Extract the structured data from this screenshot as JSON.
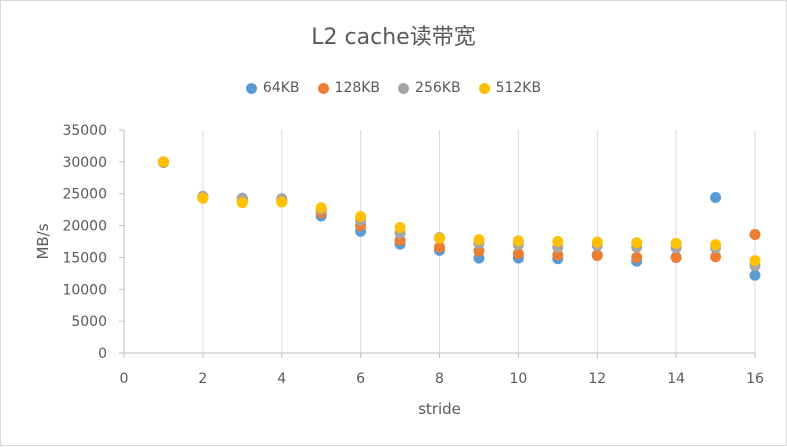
{
  "chart_data": {
    "type": "scatter",
    "title": "L2 cache读带宽",
    "xlabel": "stride",
    "ylabel": "MB/s",
    "xlim": [
      0,
      16
    ],
    "ylim": [
      0,
      35000
    ],
    "x_ticks": [
      0,
      2,
      4,
      6,
      8,
      10,
      12,
      14,
      16
    ],
    "y_ticks": [
      0,
      5000,
      10000,
      15000,
      20000,
      25000,
      30000,
      35000
    ],
    "grid": "vertical",
    "legend_position": "top",
    "series": [
      {
        "name": "64KB",
        "color": "#5b9bd5",
        "points": [
          [
            1,
            29900
          ],
          [
            2,
            24500
          ],
          [
            3,
            23900
          ],
          [
            4,
            23900
          ],
          [
            5,
            21500
          ],
          [
            6,
            19100
          ],
          [
            7,
            17100
          ],
          [
            8,
            16100
          ],
          [
            9,
            14900
          ],
          [
            10,
            14900
          ],
          [
            11,
            14800
          ],
          [
            12,
            15400
          ],
          [
            13,
            14400
          ],
          [
            14,
            15000
          ],
          [
            15,
            24400
          ],
          [
            16,
            12200
          ]
        ]
      },
      {
        "name": "128KB",
        "color": "#ed7d31",
        "points": [
          [
            1,
            30000
          ],
          [
            2,
            24400
          ],
          [
            3,
            24200
          ],
          [
            4,
            24000
          ],
          [
            5,
            22000
          ],
          [
            6,
            20000
          ],
          [
            7,
            17700
          ],
          [
            8,
            16600
          ],
          [
            9,
            16000
          ],
          [
            10,
            15600
          ],
          [
            11,
            15400
          ],
          [
            12,
            15300
          ],
          [
            13,
            15000
          ],
          [
            14,
            15000
          ],
          [
            15,
            15100
          ],
          [
            16,
            18600
          ]
        ]
      },
      {
        "name": "256KB",
        "color": "#a5a5a5",
        "points": [
          [
            1,
            30000
          ],
          [
            2,
            24600
          ],
          [
            3,
            24300
          ],
          [
            4,
            24200
          ],
          [
            5,
            22500
          ],
          [
            6,
            20800
          ],
          [
            7,
            18800
          ],
          [
            8,
            18100
          ],
          [
            9,
            17200
          ],
          [
            10,
            17000
          ],
          [
            11,
            16600
          ],
          [
            12,
            16900
          ],
          [
            13,
            16600
          ],
          [
            14,
            16500
          ],
          [
            15,
            16500
          ],
          [
            16,
            13700
          ]
        ]
      },
      {
        "name": "512KB",
        "color": "#ffc000",
        "points": [
          [
            1,
            30000
          ],
          [
            2,
            24300
          ],
          [
            3,
            23600
          ],
          [
            4,
            23700
          ],
          [
            5,
            22800
          ],
          [
            6,
            21400
          ],
          [
            7,
            19700
          ],
          [
            8,
            18000
          ],
          [
            9,
            17800
          ],
          [
            10,
            17600
          ],
          [
            11,
            17500
          ],
          [
            12,
            17400
          ],
          [
            13,
            17300
          ],
          [
            14,
            17200
          ],
          [
            15,
            17000
          ],
          [
            16,
            14500
          ]
        ]
      }
    ]
  }
}
